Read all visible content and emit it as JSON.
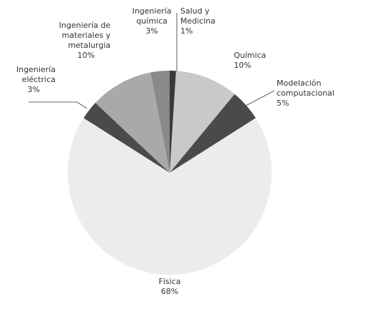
{
  "chart_data": {
    "type": "pie",
    "categories": [
      [
        "Salud y",
        "Medicina"
      ],
      [
        "Química"
      ],
      [
        "Modelación",
        "computacional"
      ],
      [
        "Física"
      ],
      [
        "Ingeniería",
        "eléctrica"
      ],
      [
        "Ingeniería de",
        "materiales y",
        "metalurgia"
      ],
      [
        "Ingeniería",
        "química"
      ]
    ],
    "values": [
      1,
      10,
      5,
      68,
      3,
      10,
      3
    ],
    "value_labels": [
      "1%",
      "10%",
      "5%",
      "68%",
      "3%",
      "10%",
      "3%"
    ],
    "colors": [
      "#3a3a3a",
      "#c9c9c9",
      "#4a4a4a",
      "#ececec",
      "#4a4a4a",
      "#a9a9a9",
      "#8a8a8a"
    ]
  }
}
